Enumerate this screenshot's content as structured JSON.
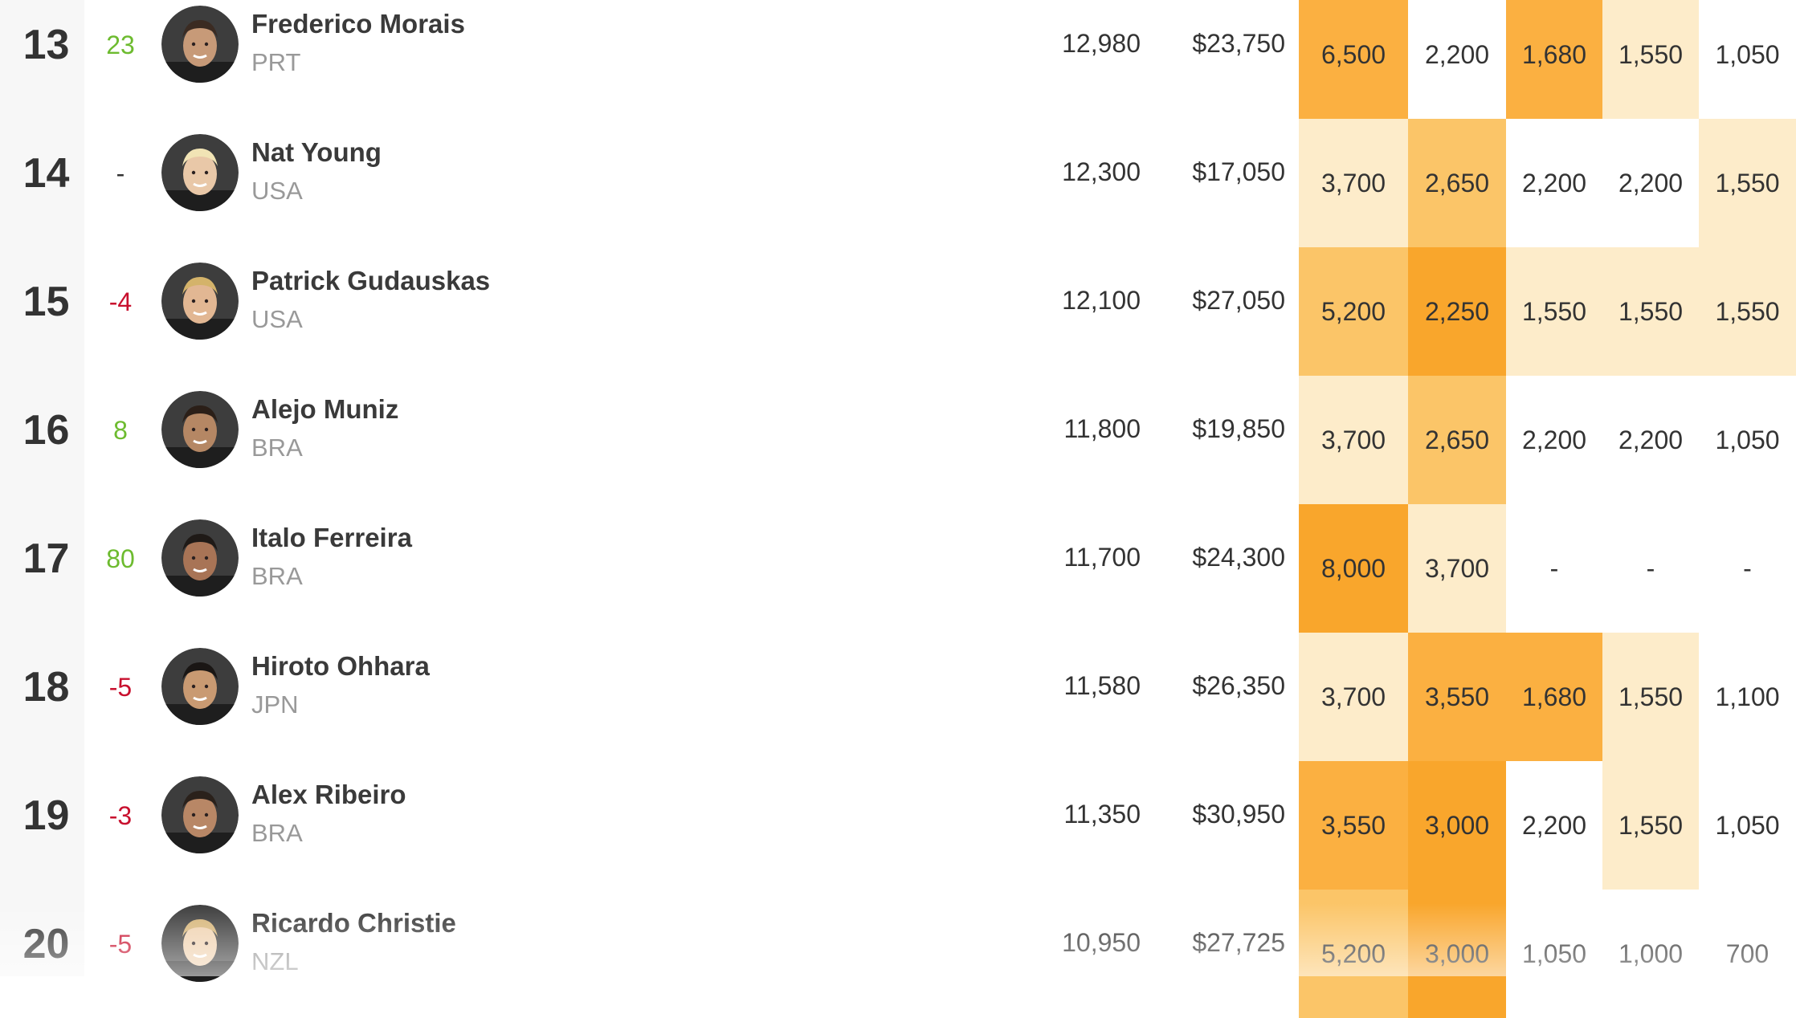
{
  "colors": {
    "heat_1": "#fdecca",
    "heat_2": "#fcd28c",
    "heat_3": "#fbc568",
    "heat_4": "#fbb041",
    "heat_5": "#f9a62c",
    "positive_change": "#6dbb2f",
    "negative_change": "#c8102e"
  },
  "rows": [
    {
      "rank": "13",
      "change": "23",
      "change_dir": "up",
      "name": "Frederico Morais",
      "country": "PRT",
      "points": "12,980",
      "prize": "$23,750",
      "scores": [
        {
          "value": "6,500",
          "heat": 4
        },
        {
          "value": "2,200",
          "heat": 0
        },
        {
          "value": "1,680",
          "heat": 4
        },
        {
          "value": "1,550",
          "heat": 1
        },
        {
          "value": "1,050",
          "heat": 0
        }
      ]
    },
    {
      "rank": "14",
      "change": "-",
      "change_dir": "none",
      "name": "Nat Young",
      "country": "USA",
      "points": "12,300",
      "prize": "$17,050",
      "scores": [
        {
          "value": "3,700",
          "heat": 1
        },
        {
          "value": "2,650",
          "heat": 3
        },
        {
          "value": "2,200",
          "heat": 0
        },
        {
          "value": "2,200",
          "heat": 0
        },
        {
          "value": "1,550",
          "heat": 1
        }
      ]
    },
    {
      "rank": "15",
      "change": "-4",
      "change_dir": "down",
      "name": "Patrick Gudauskas",
      "country": "USA",
      "points": "12,100",
      "prize": "$27,050",
      "scores": [
        {
          "value": "5,200",
          "heat": 3
        },
        {
          "value": "2,250",
          "heat": 5
        },
        {
          "value": "1,550",
          "heat": 1
        },
        {
          "value": "1,550",
          "heat": 1
        },
        {
          "value": "1,550",
          "heat": 1
        }
      ]
    },
    {
      "rank": "16",
      "change": "8",
      "change_dir": "up",
      "name": "Alejo Muniz",
      "country": "BRA",
      "points": "11,800",
      "prize": "$19,850",
      "scores": [
        {
          "value": "3,700",
          "heat": 1
        },
        {
          "value": "2,650",
          "heat": 3
        },
        {
          "value": "2,200",
          "heat": 0
        },
        {
          "value": "2,200",
          "heat": 0
        },
        {
          "value": "1,050",
          "heat": 0
        }
      ]
    },
    {
      "rank": "17",
      "change": "80",
      "change_dir": "up",
      "name": "Italo Ferreira",
      "country": "BRA",
      "points": "11,700",
      "prize": "$24,300",
      "scores": [
        {
          "value": "8,000",
          "heat": 5
        },
        {
          "value": "3,700",
          "heat": 1
        },
        {
          "value": "-",
          "heat": 0
        },
        {
          "value": "-",
          "heat": 0
        },
        {
          "value": "-",
          "heat": 0
        }
      ]
    },
    {
      "rank": "18",
      "change": "-5",
      "change_dir": "down",
      "name": "Hiroto Ohhara",
      "country": "JPN",
      "points": "11,580",
      "prize": "$26,350",
      "scores": [
        {
          "value": "3,700",
          "heat": 1
        },
        {
          "value": "3,550",
          "heat": 4
        },
        {
          "value": "1,680",
          "heat": 4
        },
        {
          "value": "1,550",
          "heat": 1
        },
        {
          "value": "1,100",
          "heat": 0
        }
      ]
    },
    {
      "rank": "19",
      "change": "-3",
      "change_dir": "down",
      "name": "Alex Ribeiro",
      "country": "BRA",
      "points": "11,350",
      "prize": "$30,950",
      "scores": [
        {
          "value": "3,550",
          "heat": 4
        },
        {
          "value": "3,000",
          "heat": 5
        },
        {
          "value": "2,200",
          "heat": 0
        },
        {
          "value": "1,550",
          "heat": 1
        },
        {
          "value": "1,050",
          "heat": 0
        }
      ]
    },
    {
      "rank": "20",
      "change": "-5",
      "change_dir": "down",
      "name": "Ricardo Christie",
      "country": "NZL",
      "points": "10,950",
      "prize": "$27,725",
      "scores": [
        {
          "value": "5,200",
          "heat": 3
        },
        {
          "value": "3,000",
          "heat": 5
        },
        {
          "value": "1,050",
          "heat": 0
        },
        {
          "value": "1,000",
          "heat": 0
        },
        {
          "value": "700",
          "heat": 0
        }
      ]
    }
  ]
}
